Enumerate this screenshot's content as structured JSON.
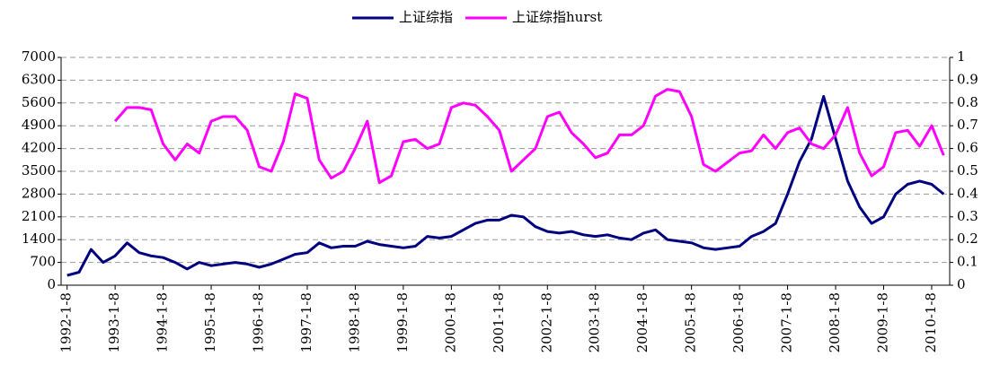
{
  "chart_data": {
    "type": "line",
    "categories": [
      "1992-1-8",
      null,
      null,
      null,
      "1993-1-8",
      null,
      null,
      null,
      "1994-1-8",
      null,
      null,
      null,
      "1995-1-8",
      null,
      null,
      null,
      "1996-1-8",
      null,
      null,
      null,
      "1997-1-8",
      null,
      null,
      null,
      "1998-1-8",
      null,
      null,
      null,
      "1999-1-8",
      null,
      null,
      null,
      "2000-1-8",
      null,
      null,
      null,
      "2001-1-8",
      null,
      null,
      null,
      "2002-1-8",
      null,
      null,
      null,
      "2003-1-8",
      null,
      null,
      null,
      "2004-1-8",
      null,
      null,
      null,
      "2005-1-8",
      null,
      null,
      null,
      "2006-1-8",
      null,
      null,
      null,
      "2007-1-8",
      null,
      null,
      null,
      "2008-1-8",
      null,
      null,
      null,
      "2009-1-8",
      null,
      null,
      null,
      "2010-1-8",
      null
    ],
    "series": [
      {
        "name": "上证综指",
        "color": "#000080",
        "values": [
          300,
          400,
          1100,
          700,
          900,
          1300,
          1000,
          900,
          850,
          700,
          500,
          700,
          600,
          650,
          700,
          650,
          550,
          650,
          800,
          950,
          1000,
          1300,
          1150,
          1200,
          1200,
          1350,
          1250,
          1200,
          1150,
          1200,
          1500,
          1450,
          1500,
          1700,
          1900,
          2000,
          2000,
          2150,
          2100,
          1800,
          1650,
          1600,
          1650,
          1550,
          1500,
          1550,
          1450,
          1400,
          1600,
          1700,
          1400,
          1350,
          1300,
          1150,
          1100,
          1150,
          1200,
          1500,
          1650,
          1900,
          2800,
          3800,
          4500,
          5800,
          4500,
          3200,
          2400,
          1900,
          2100,
          2800,
          3100,
          3200,
          3100,
          2800
        ]
      },
      {
        "name": "上证综指hurst",
        "color": "#ff00ff",
        "axis": "y2",
        "values": [
          null,
          null,
          null,
          null,
          0.72,
          0.78,
          0.78,
          0.77,
          0.62,
          0.55,
          0.62,
          0.58,
          0.72,
          0.74,
          0.74,
          0.68,
          0.52,
          0.5,
          0.63,
          0.84,
          0.82,
          0.55,
          0.47,
          0.5,
          0.6,
          0.72,
          0.45,
          0.48,
          0.63,
          0.64,
          0.6,
          0.62,
          0.78,
          0.8,
          0.79,
          0.74,
          0.68,
          0.5,
          0.55,
          0.6,
          0.74,
          0.76,
          0.67,
          0.62,
          0.56,
          0.58,
          0.66,
          0.66,
          0.7,
          0.83,
          0.86,
          0.85,
          0.74,
          0.53,
          0.5,
          0.54,
          0.58,
          0.59,
          0.66,
          0.6,
          0.67,
          0.69,
          0.62,
          0.6,
          0.66,
          0.78,
          0.58,
          0.48,
          0.52,
          0.67,
          0.68,
          0.61,
          0.7,
          0.57
        ]
      }
    ],
    "ylim": [
      0,
      7000
    ],
    "yticks": [
      0,
      700,
      1400,
      2100,
      2800,
      3500,
      4200,
      4900,
      5600,
      6300,
      7000
    ],
    "y2lim": [
      0,
      1
    ],
    "y2ticks": [
      0,
      0.1,
      0.2,
      0.3,
      0.4,
      0.5,
      0.6,
      0.7,
      0.8,
      0.9,
      1
    ],
    "grid": true,
    "legend": "top"
  }
}
